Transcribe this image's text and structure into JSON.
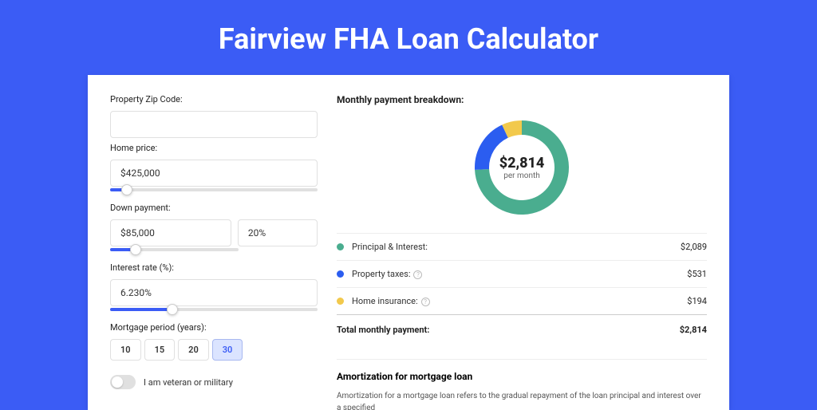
{
  "page": {
    "title": "Fairview FHA Loan Calculator",
    "background_color": "#3b5cf5",
    "panel_background": "#ffffff"
  },
  "form": {
    "zip": {
      "label": "Property Zip Code:",
      "value": ""
    },
    "home_price": {
      "label": "Home price:",
      "value": "$425,000",
      "slider_pct": 8
    },
    "down_payment": {
      "label": "Down payment:",
      "amount": "$85,000",
      "pct": "20%",
      "slider_pct": 20
    },
    "interest": {
      "label": "Interest rate (%):",
      "value": "6.230%",
      "slider_pct": 30
    },
    "period": {
      "label": "Mortgage period (years):",
      "options": [
        "10",
        "15",
        "20",
        "30"
      ],
      "active_index": 3
    },
    "veteran": {
      "label": "I am veteran or military",
      "checked": false
    }
  },
  "breakdown": {
    "title": "Monthly payment breakdown:",
    "donut": {
      "center_value": "$2,814",
      "center_sub": "per month",
      "segments": [
        {
          "key": "principal_interest",
          "value": 2089,
          "color": "#4aad8f"
        },
        {
          "key": "property_taxes",
          "value": 531,
          "color": "#2b5df0"
        },
        {
          "key": "home_insurance",
          "value": 194,
          "color": "#f2c94c"
        }
      ],
      "background_color": "#ffffff",
      "stroke_width": 18
    },
    "rows": [
      {
        "label": "Principal & Interest:",
        "value": "$2,089",
        "color": "#4aad8f",
        "info": false
      },
      {
        "label": "Property taxes:",
        "value": "$531",
        "color": "#2b5df0",
        "info": true
      },
      {
        "label": "Home insurance:",
        "value": "$194",
        "color": "#f2c94c",
        "info": true
      }
    ],
    "total": {
      "label": "Total monthly payment:",
      "value": "$2,814"
    }
  },
  "amortization": {
    "title": "Amortization for mortgage loan",
    "text": "Amortization for a mortgage loan refers to the gradual repayment of the loan principal and interest over a specified"
  }
}
